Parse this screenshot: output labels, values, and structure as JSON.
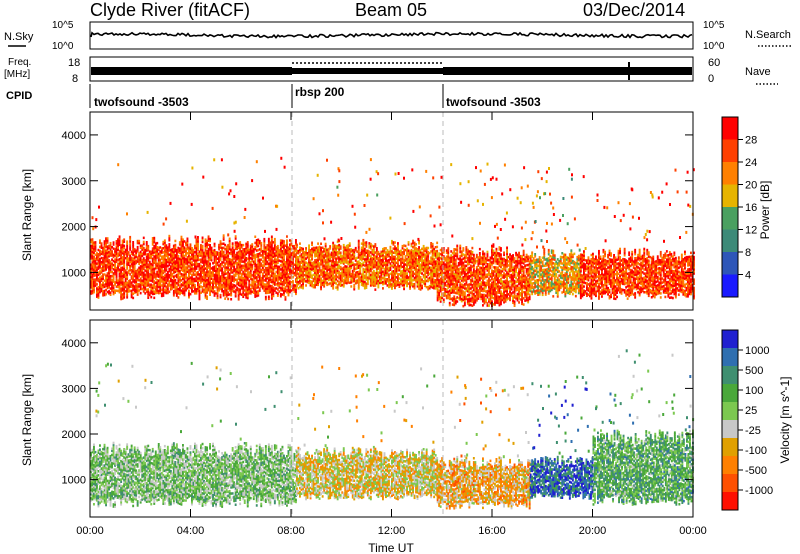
{
  "header": {
    "station": "Clyde River (fitACF)",
    "beam": "Beam 05",
    "date": "03/Dec/2014"
  },
  "noise_panel": {
    "left_label": "N.Sky",
    "right_label": "N.Search",
    "left_ticks": [
      "10^5",
      "10^0"
    ],
    "right_ticks": [
      "10^5",
      "10^0"
    ]
  },
  "freq_panel": {
    "left_label_line1": "Freq.",
    "left_label_line2": "[MHz]",
    "left_ticks": [
      "18",
      "8"
    ],
    "right_label": "Nave",
    "right_ticks": [
      "60",
      "0"
    ]
  },
  "cpid_panel": {
    "label": "CPID",
    "segments": [
      {
        "name": "twofsound -3503",
        "start_h": 0,
        "end_h": 8
      },
      {
        "name": "rbsp 200",
        "start_h": 8,
        "end_h": 14
      },
      {
        "name": "twofsound -3503",
        "start_h": 14,
        "end_h": 24
      }
    ]
  },
  "colors": {
    "power_scale": [
      "#1a1aff",
      "#2e56b8",
      "#3c8a78",
      "#4aa060",
      "#e6b400",
      "#ff8000",
      "#ff4000",
      "#ff0000"
    ],
    "velocity_scale": [
      "#2020d0",
      "#2f6fb0",
      "#3f8f70",
      "#4aa83a",
      "#7cc850",
      "#c8c8c8",
      "#e0a000",
      "#ff8000",
      "#ff5000",
      "#ff1000"
    ]
  },
  "chart_data": [
    {
      "type": "heatmap",
      "name": "power",
      "x_axis": {
        "range_h": [
          0,
          24
        ],
        "ticks": [
          "00:00",
          "04:00",
          "08:00",
          "12:00",
          "16:00",
          "20:00",
          "00:00"
        ]
      },
      "y_axis": {
        "label": "Slant Range [km]",
        "range": [
          180,
          4500
        ],
        "ticks": [
          "1000",
          "2000",
          "3000",
          "4000"
        ]
      },
      "colorbar": {
        "label": "Power [dB]",
        "ticks": [
          "28",
          "24",
          "20",
          "16",
          "12",
          "8",
          "4"
        ],
        "range": [
          0,
          32
        ]
      },
      "structures": [
        {
          "t0": 0.0,
          "t1": 8.2,
          "r0": 450,
          "r1": 1800,
          "value": 27
        },
        {
          "t0": 8.2,
          "t1": 13.8,
          "r0": 650,
          "r1": 1700,
          "value": 24
        },
        {
          "t0": 13.8,
          "t1": 17.5,
          "r0": 300,
          "r1": 1600,
          "value": 26
        },
        {
          "t0": 17.5,
          "t1": 19.5,
          "r0": 500,
          "r1": 1500,
          "value": 20
        },
        {
          "t0": 19.5,
          "t1": 24.0,
          "r0": 450,
          "r1": 1500,
          "value": 27
        }
      ]
    },
    {
      "type": "heatmap",
      "name": "velocity",
      "x_axis": {
        "label": "Time UT",
        "range_h": [
          0,
          24
        ],
        "ticks": [
          "00:00",
          "04:00",
          "08:00",
          "12:00",
          "16:00",
          "20:00",
          "00:00"
        ]
      },
      "y_axis": {
        "label": "Slant Range [km]",
        "range": [
          180,
          4500
        ],
        "ticks": [
          "1000",
          "2000",
          "3000",
          "4000"
        ]
      },
      "colorbar": {
        "label": "Velocity [m s^-1]",
        "ticks": [
          "1000",
          "500",
          "100",
          "25",
          "-25",
          "-100",
          "-500",
          "-1000"
        ],
        "range": [
          -1000,
          1000
        ]
      },
      "structures": [
        {
          "t0": 0.0,
          "t1": 8.2,
          "r0": 450,
          "r1": 1800,
          "value": 150
        },
        {
          "t0": 8.2,
          "t1": 13.8,
          "r0": 600,
          "r1": 1700,
          "value": -150
        },
        {
          "t0": 13.8,
          "t1": 17.5,
          "r0": 400,
          "r1": 1500,
          "value": -300
        },
        {
          "t0": 17.5,
          "t1": 20.0,
          "r0": 600,
          "r1": 1500,
          "value": 700
        },
        {
          "t0": 20.0,
          "t1": 24.0,
          "r0": 500,
          "r1": 2100,
          "value": 300
        }
      ]
    }
  ]
}
